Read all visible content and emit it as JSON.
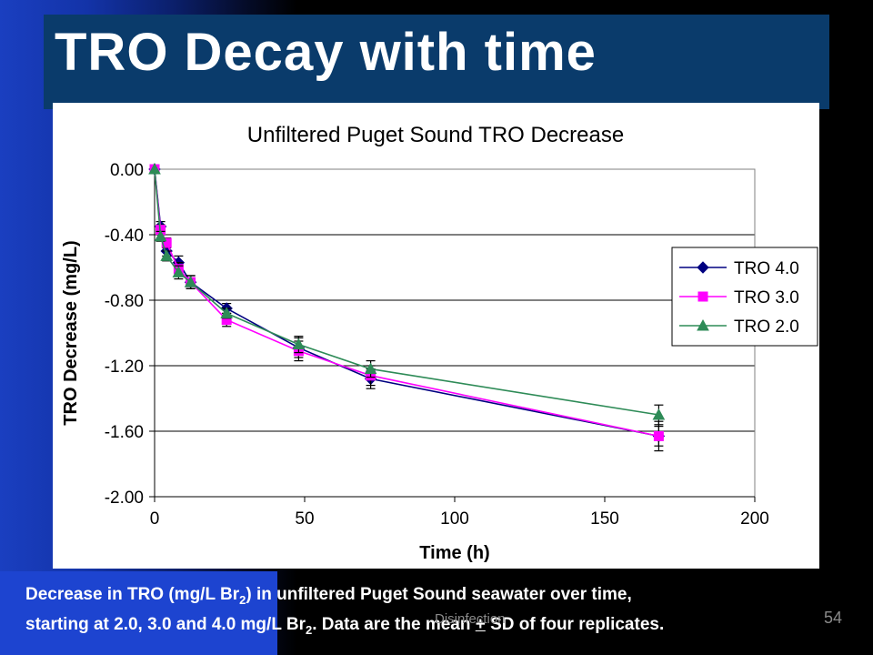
{
  "slide": {
    "title": "TRO Decay with time",
    "footer_label": "Disinfection",
    "page_number": "54",
    "caption": {
      "part1": "Decrease in TRO (mg/L Br",
      "sub1": "2",
      "part2": ") in unfiltered Puget Sound seawater over time,",
      "part3": "starting at 2.0, 3.0 and 4.0 mg/L Br",
      "sub2": "2",
      "part4": ".  Data are the mean ",
      "plus": "+",
      "part5": " SD of four replicates."
    }
  },
  "chart_data": {
    "type": "line",
    "title": "Unfiltered Puget Sound TRO Decrease",
    "xlabel": "Time  (h)",
    "ylabel": "TRO Decrease (mg/L)",
    "xlim": [
      0,
      200
    ],
    "ylim": [
      -2.0,
      0.0
    ],
    "xticks": [
      0,
      50,
      100,
      150,
      200
    ],
    "yticks": [
      0.0,
      -0.4,
      -0.8,
      -1.2,
      -1.6,
      -2.0
    ],
    "ytick_labels": [
      "0.00",
      "-0.40",
      "-0.80",
      "-1.20",
      "-1.60",
      "-2.00"
    ],
    "grid": "horizontal",
    "legend_position": "right",
    "x": [
      0,
      2,
      4,
      8,
      12,
      24,
      48,
      72,
      168
    ],
    "series": [
      {
        "name": "TRO 4.0",
        "color": "#000080",
        "marker": "diamond",
        "values": [
          0,
          -0.35,
          -0.5,
          -0.57,
          -0.69,
          -0.85,
          -1.09,
          -1.28,
          -1.63
        ],
        "errors": [
          0,
          0.03,
          0.03,
          0.04,
          0.04,
          0.03,
          0.06,
          0.06,
          0.09
        ]
      },
      {
        "name": "TRO 3.0",
        "color": "#ff00ff",
        "marker": "square",
        "values": [
          0,
          -0.37,
          -0.45,
          -0.61,
          -0.69,
          -0.92,
          -1.11,
          -1.26,
          -1.63
        ],
        "errors": [
          0,
          0.03,
          0.03,
          0.04,
          0.04,
          0.04,
          0.06,
          0.06,
          0.06
        ]
      },
      {
        "name": "TRO 2.0",
        "color": "#2e8b57",
        "marker": "triangle",
        "values": [
          0,
          -0.41,
          -0.53,
          -0.63,
          -0.69,
          -0.88,
          -1.07,
          -1.22,
          -1.5
        ],
        "errors": [
          0,
          0.03,
          0.03,
          0.04,
          0.04,
          0.03,
          0.05,
          0.05,
          0.06
        ]
      }
    ]
  }
}
